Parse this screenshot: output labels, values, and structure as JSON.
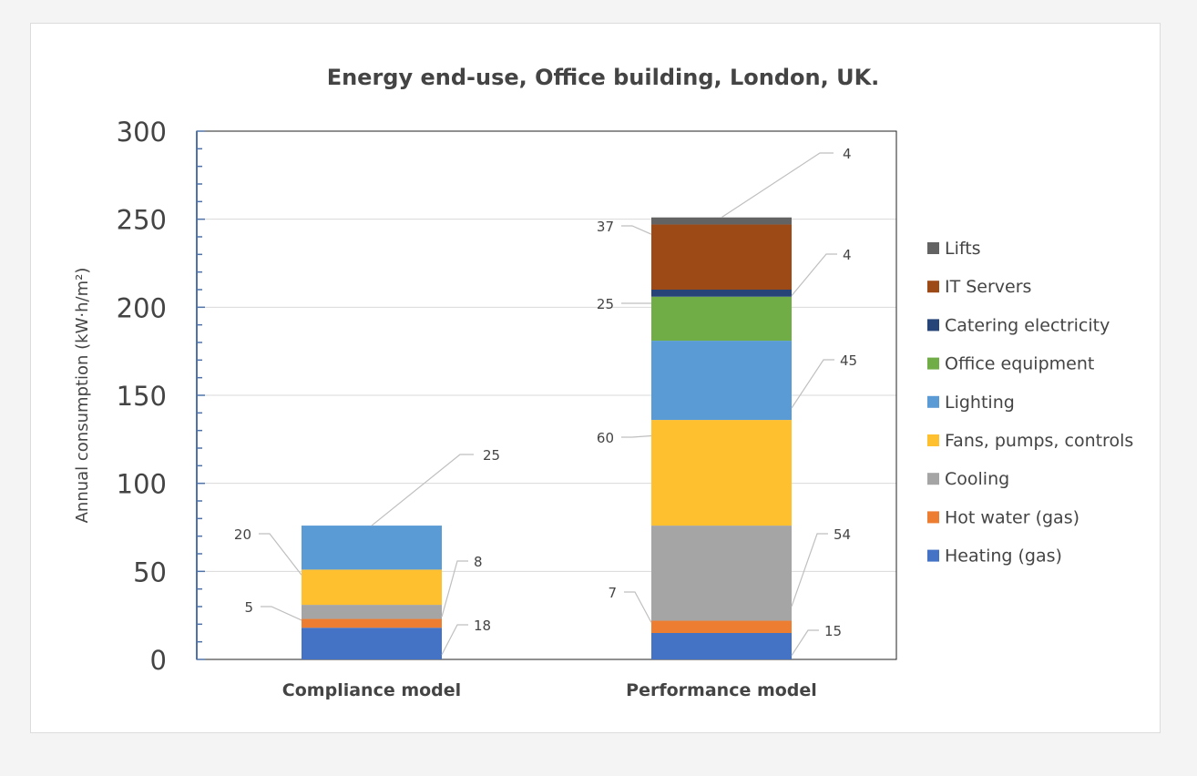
{
  "chart_data": {
    "type": "bar",
    "stacked": true,
    "title": "Energy end-use, Office building, London, UK.",
    "xlabel": "",
    "ylabel": "Annual consumption (kW·h/m²)",
    "ylim": [
      0,
      300
    ],
    "yticks": [
      "0",
      "50",
      "100",
      "150",
      "200",
      "250",
      "300"
    ],
    "grid": true,
    "legend_position": "right",
    "categories": [
      "Compliance model",
      "Performance model"
    ],
    "series": [
      {
        "name": "Heating (gas)",
        "color": "#4472c4",
        "values": [
          18,
          15
        ]
      },
      {
        "name": "Hot water (gas)",
        "color": "#ed7d31",
        "values": [
          5,
          7
        ]
      },
      {
        "name": "Cooling",
        "color": "#a5a5a5",
        "values": [
          8,
          54
        ]
      },
      {
        "name": "Fans, pumps, controls",
        "color": "#ffc02f",
        "values": [
          20,
          60
        ]
      },
      {
        "name": "Lighting",
        "color": "#5b9bd5",
        "values": [
          25,
          45
        ]
      },
      {
        "name": "Office equipment",
        "color": "#70ad47",
        "values": [
          0,
          25
        ]
      },
      {
        "name": "Catering electricity",
        "color": "#264478",
        "values": [
          0,
          4
        ]
      },
      {
        "name": "IT Servers",
        "color": "#9e4a17",
        "values": [
          0,
          37
        ]
      },
      {
        "name": "Lifts",
        "color": "#636363",
        "values": [
          0,
          4
        ]
      }
    ]
  }
}
